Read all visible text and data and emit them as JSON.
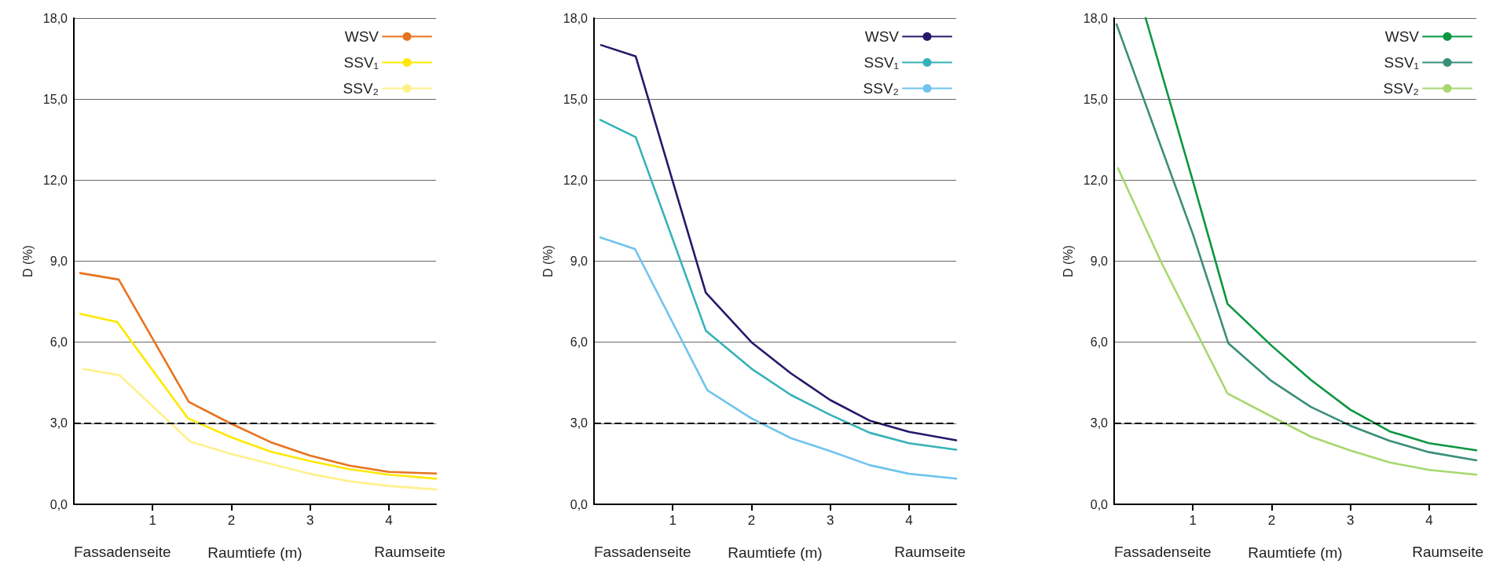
{
  "chart_data": [
    {
      "type": "line",
      "ylabel": "D (%)",
      "xlabel": "Raumtiefe (m)",
      "annotations": [
        "Fassadenseite",
        "Raumseite"
      ],
      "xlim": [
        0,
        4.6
      ],
      "xticks": [
        1,
        2,
        3,
        4
      ],
      "ylim": [
        0,
        18
      ],
      "yticks": [
        {
          "value": 0,
          "label": "0,0"
        },
        {
          "value": 3,
          "label": "3,0"
        },
        {
          "value": 6,
          "label": "6,0"
        },
        {
          "value": 9,
          "label": "9,0"
        },
        {
          "value": 12,
          "label": "12,0"
        },
        {
          "value": 15,
          "label": "15,0"
        },
        {
          "value": 18,
          "label": "18,0"
        }
      ],
      "grid": "y",
      "legend": "top right",
      "marker": "none",
      "line_style": "solid",
      "ref_lines": [
        {
          "axis": "y",
          "value": 3,
          "label": null,
          "color": "#000000",
          "line_style": "dashed"
        }
      ],
      "series": [
        {
          "name": "WSV",
          "color": "#e8731e",
          "x": [
            0.08,
            0.57,
            1.46,
            2,
            2.5,
            3,
            3.5,
            4,
            4.6
          ],
          "values": [
            8.56,
            8.32,
            3.79,
            2.98,
            2.3,
            1.8,
            1.43,
            1.2,
            1.14
          ]
        },
        {
          "name": "SSV₁",
          "color": "#ffe800",
          "x": [
            0.08,
            0.55,
            1.45,
            2,
            2.5,
            3,
            3.5,
            4,
            4.6
          ],
          "values": [
            7.05,
            6.75,
            3.18,
            2.48,
            1.95,
            1.6,
            1.3,
            1.1,
            0.95
          ]
        },
        {
          "name": "SSV₂",
          "color": "#fff08a",
          "x": [
            0.12,
            0.58,
            1.48,
            2,
            2.5,
            3,
            3.5,
            4,
            4.6
          ],
          "values": [
            5.01,
            4.78,
            2.32,
            1.86,
            1.5,
            1.13,
            0.85,
            0.68,
            0.55
          ]
        }
      ]
    },
    {
      "type": "line",
      "ylabel": "D (%)",
      "xlabel": "Raumtiefe (m)",
      "annotations": [
        "Fassadenseite",
        "Raumseite"
      ],
      "xlim": [
        0,
        4.6
      ],
      "xticks": [
        1,
        2,
        3,
        4
      ],
      "ylim": [
        0,
        18
      ],
      "yticks": [
        {
          "value": 0,
          "label": "0,0"
        },
        {
          "value": 3,
          "label": "3,0"
        },
        {
          "value": 6,
          "label": "6,0"
        },
        {
          "value": 9,
          "label": "9,0"
        },
        {
          "value": 12,
          "label": "12,0"
        },
        {
          "value": 15,
          "label": "15,0"
        },
        {
          "value": 18,
          "label": "18,0"
        }
      ],
      "grid": "y",
      "legend": "top right",
      "marker": "none",
      "line_style": "solid",
      "ref_lines": [
        {
          "axis": "y",
          "value": 3,
          "label": null,
          "color": "#000000",
          "line_style": "dashed"
        }
      ],
      "series": [
        {
          "name": "WSV",
          "color": "#241a6b",
          "x": [
            0.09,
            0.53,
            1.42,
            2,
            2.5,
            3,
            3.5,
            4,
            4.6
          ],
          "values": [
            17.0,
            16.58,
            7.83,
            6.0,
            4.85,
            3.86,
            3.1,
            2.68,
            2.37
          ]
        },
        {
          "name": "SSV₁",
          "color": "#35b2b8",
          "x": [
            0.08,
            0.53,
            1.42,
            2,
            2.5,
            3,
            3.5,
            4,
            4.6
          ],
          "values": [
            14.23,
            13.59,
            6.43,
            5.02,
            4.05,
            3.31,
            2.65,
            2.26,
            2.02
          ]
        },
        {
          "name": "SSV₂",
          "color": "#6fc4ee",
          "x": [
            0.08,
            0.52,
            1.44,
            2,
            2.5,
            3,
            3.5,
            4,
            4.6
          ],
          "values": [
            9.88,
            9.45,
            4.22,
            3.18,
            2.45,
            1.97,
            1.45,
            1.13,
            0.95
          ]
        }
      ]
    },
    {
      "type": "line",
      "ylabel": "D (%)",
      "xlabel": "Raumtiefe (m)",
      "annotations": [
        "Fassadenseite",
        "Raumseite"
      ],
      "xlim": [
        0,
        4.6
      ],
      "xticks": [
        1,
        2,
        3,
        4
      ],
      "ylim": [
        0,
        18
      ],
      "yticks": [
        {
          "value": 0,
          "label": "0,0"
        },
        {
          "value": 3,
          "label": "3,0"
        },
        {
          "value": 6,
          "label": "6,0"
        },
        {
          "value": 9,
          "label": "9,0"
        },
        {
          "value": 12,
          "label": "12,0"
        },
        {
          "value": 15,
          "label": "15,0"
        },
        {
          "value": 18,
          "label": "18,0"
        }
      ],
      "grid": "y",
      "legend": "top right",
      "marker": "none",
      "line_style": "solid",
      "ref_lines": [
        {
          "axis": "y",
          "value": 3,
          "label": null,
          "color": "#000000",
          "line_style": "dashed"
        }
      ],
      "series": [
        {
          "name": "WSV",
          "color": "#0a9640",
          "x": [
            0.4,
            1.0,
            1.44,
            2,
            2.5,
            3,
            3.5,
            4,
            4.6
          ],
          "values": [
            18.0,
            11.97,
            7.42,
            5.87,
            4.6,
            3.5,
            2.7,
            2.26,
            2.0
          ]
        },
        {
          "name": "SSV₁",
          "color": "#3a8e7a",
          "x": [
            0.03,
            1.0,
            1.45,
            2,
            2.5,
            3,
            3.5,
            4,
            4.6
          ],
          "values": [
            17.77,
            10.0,
            5.96,
            4.56,
            3.6,
            2.91,
            2.35,
            1.93,
            1.63
          ]
        },
        {
          "name": "SSV₂",
          "color": "#a6d86e",
          "x": [
            0.05,
            0.6,
            1.44,
            2,
            2.5,
            3,
            3.5,
            4,
            4.6
          ],
          "values": [
            12.44,
            8.95,
            4.1,
            3.25,
            2.5,
            1.99,
            1.55,
            1.27,
            1.1
          ]
        }
      ]
    }
  ]
}
